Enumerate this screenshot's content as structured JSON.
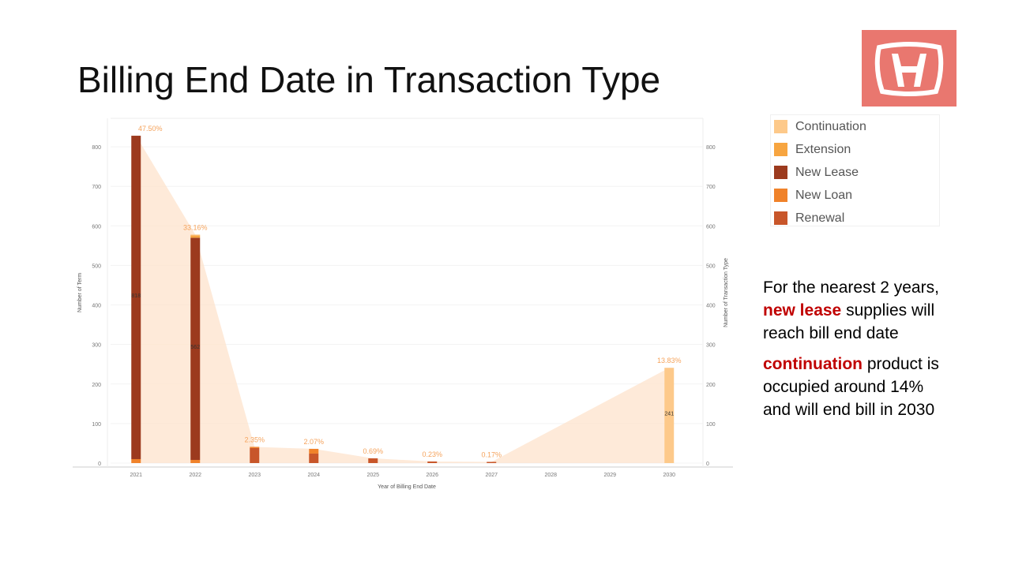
{
  "chart_data": {
    "type": "bar",
    "title": "Billing End Date in Transaction Type",
    "x_label": "Year of Billing End Date",
    "y_label": "Number of Term",
    "y2_label": "Number of Transaction Type",
    "x": [
      2021,
      2022,
      2023,
      2024,
      2025,
      2026,
      2027,
      2030
    ],
    "xlim": [
      2020.57,
      2030.57
    ],
    "xticks": [
      2021,
      2022,
      2023,
      2024,
      2025,
      2026,
      2027,
      2028,
      2029,
      2030
    ],
    "ylim": [
      -10,
      872
    ],
    "yticks": [
      0,
      100,
      200,
      300,
      400,
      500,
      600,
      700,
      800
    ],
    "y2lim": [
      -10,
      872
    ],
    "y2ticks": [
      0,
      100,
      200,
      300,
      400,
      500,
      600,
      700,
      800
    ],
    "grid": true,
    "series": [
      {
        "name": "Continuation",
        "color": "#fdc98a",
        "values": [
          0,
          2,
          0,
          0,
          0,
          0,
          0,
          241
        ]
      },
      {
        "name": "Extension",
        "color": "#f7a540",
        "values": [
          0,
          6,
          0,
          0,
          0,
          0,
          0,
          0
        ]
      },
      {
        "name": "New Lease",
        "color": "#9c3a1e",
        "values": [
          818,
          562,
          0,
          0,
          0,
          0,
          0,
          0
        ]
      },
      {
        "name": "New Loan",
        "color": "#f0822a",
        "values": [
          10,
          8,
          3,
          12,
          0,
          0,
          0,
          0
        ]
      },
      {
        "name": "Renewal",
        "color": "#c8562a",
        "values": [
          0,
          0,
          38,
          24,
          12,
          4,
          3,
          0
        ]
      }
    ],
    "area": {
      "axis": "y2",
      "color": "#fde3cc",
      "values": [
        828,
        578,
        41,
        36,
        12,
        4,
        3,
        241
      ],
      "annotations": [
        "47.50%",
        "33.16%",
        "2.35%",
        "2.07%",
        "0.69%",
        "0.23%",
        "0.17%",
        "13.83%"
      ]
    }
  },
  "notes": [
    [
      "For the nearest 2 years, ",
      "new lease",
      " supplies will reach bill end date"
    ],
    [
      "continuation",
      " product is occupied around 14% and will end bill in 2030"
    ]
  ]
}
